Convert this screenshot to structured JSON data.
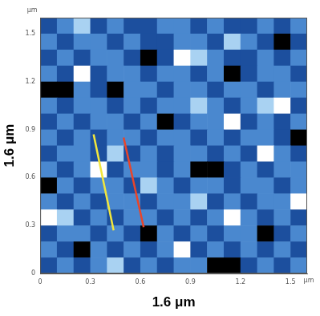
{
  "chart_data": {
    "type": "heatmap",
    "xlabel": "1.6 μm",
    "ylabel": "1.6 μm",
    "x_unit": "μm",
    "y_unit": "μm",
    "xlim": [
      0,
      1.6
    ],
    "ylim": [
      0,
      1.6
    ],
    "xticks": [
      0,
      0.3,
      0.6,
      0.9,
      1.2,
      1.5
    ],
    "yticks": [
      0,
      0.3,
      0.6,
      0.9,
      1.2,
      1.5
    ],
    "grid": false,
    "cells": [
      [
        1,
        2,
        3,
        1,
        2,
        1,
        1,
        2,
        2,
        1,
        2,
        1,
        1,
        2,
        1,
        2
      ],
      [
        2,
        1,
        2,
        2,
        1,
        2,
        1,
        1,
        2,
        2,
        1,
        3,
        2,
        1,
        0,
        1
      ],
      [
        1,
        2,
        1,
        2,
        2,
        1,
        0,
        1,
        4,
        3,
        2,
        1,
        1,
        2,
        1,
        2
      ],
      [
        2,
        1,
        4,
        1,
        2,
        2,
        1,
        2,
        2,
        1,
        2,
        0,
        1,
        2,
        2,
        1
      ],
      [
        0,
        0,
        2,
        1,
        0,
        2,
        2,
        1,
        2,
        2,
        1,
        2,
        2,
        1,
        2,
        2
      ],
      [
        2,
        1,
        2,
        2,
        1,
        2,
        1,
        2,
        2,
        3,
        2,
        1,
        2,
        3,
        4,
        1
      ],
      [
        1,
        2,
        1,
        2,
        2,
        1,
        2,
        0,
        1,
        2,
        2,
        4,
        1,
        2,
        1,
        2
      ],
      [
        2,
        1,
        2,
        1,
        2,
        2,
        1,
        2,
        2,
        1,
        2,
        1,
        2,
        2,
        1,
        0
      ],
      [
        1,
        2,
        2,
        1,
        3,
        1,
        2,
        1,
        2,
        2,
        1,
        2,
        1,
        4,
        2,
        1
      ],
      [
        2,
        1,
        2,
        4,
        1,
        2,
        2,
        1,
        2,
        0,
        0,
        1,
        2,
        1,
        2,
        2
      ],
      [
        0,
        2,
        1,
        2,
        2,
        1,
        3,
        2,
        1,
        2,
        2,
        1,
        2,
        2,
        1,
        2
      ],
      [
        2,
        1,
        2,
        1,
        2,
        2,
        1,
        2,
        2,
        3,
        1,
        2,
        1,
        2,
        2,
        4
      ],
      [
        4,
        3,
        1,
        2,
        1,
        2,
        2,
        1,
        2,
        1,
        2,
        4,
        2,
        1,
        2,
        1
      ],
      [
        1,
        2,
        2,
        1,
        2,
        1,
        0,
        2,
        1,
        2,
        1,
        2,
        2,
        0,
        1,
        2
      ],
      [
        2,
        1,
        0,
        2,
        1,
        2,
        1,
        2,
        4,
        1,
        2,
        1,
        2,
        1,
        2,
        1
      ],
      [
        1,
        2,
        1,
        2,
        3,
        1,
        2,
        1,
        2,
        2,
        0,
        0,
        1,
        2,
        1,
        2
      ]
    ],
    "lines": [
      {
        "color": "#f2e63c",
        "x": [
          0.32,
          0.44
        ],
        "y": [
          0.87,
          0.27
        ]
      },
      {
        "color": "#e8452a",
        "x": [
          0.5,
          0.62
        ],
        "y": [
          0.85,
          0.29
        ]
      }
    ]
  }
}
